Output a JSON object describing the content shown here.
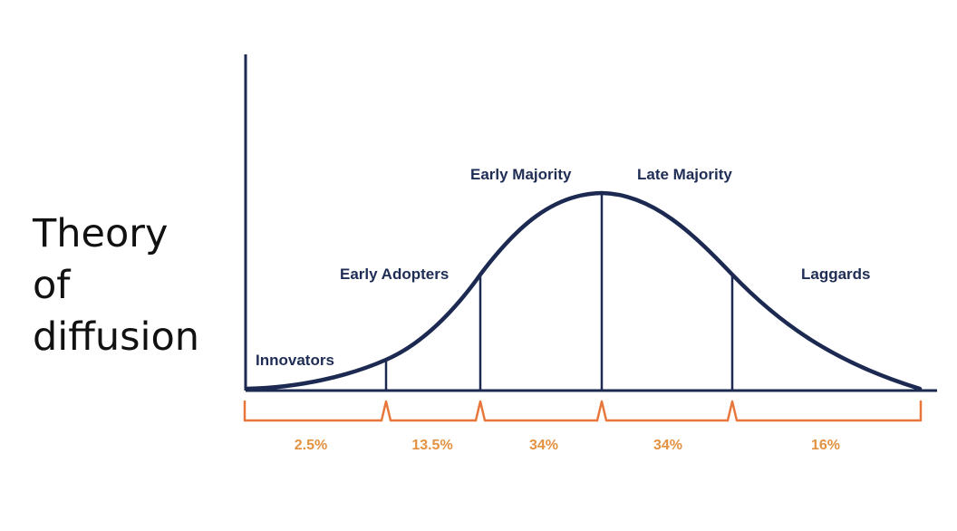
{
  "title": {
    "lines": [
      "Theory",
      "of",
      "diffusion"
    ]
  },
  "segments": [
    {
      "label": "Innovators",
      "percent": "2.5%"
    },
    {
      "label": "Early Adopters",
      "percent": "13.5%"
    },
    {
      "label": "Early Majority",
      "percent": "34%"
    },
    {
      "label": "Late Majority",
      "percent": "34%"
    },
    {
      "label": "Laggards",
      "percent": "16%"
    }
  ],
  "colors": {
    "curve": "#1c2a52",
    "label": "#1f2d55",
    "bracket": "#e8763a",
    "percent": "#e39240",
    "title": "#111111"
  }
}
